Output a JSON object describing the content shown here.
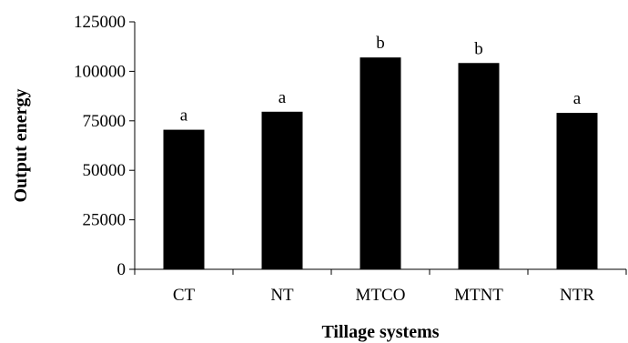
{
  "chart_data": {
    "type": "bar",
    "title": "",
    "xlabel": "Tillage systems",
    "ylabel": "Output energy",
    "categories": [
      "CT",
      "NT",
      "MTCO",
      "MTNT",
      "NTR"
    ],
    "values": [
      70500,
      79600,
      107000,
      104200,
      79000
    ],
    "significance_labels": [
      "a",
      "a",
      "b",
      "b",
      "a"
    ],
    "ylim": [
      0,
      125000
    ],
    "yticks": [
      0,
      25000,
      50000,
      75000,
      100000,
      125000
    ],
    "ytick_labels": [
      "0",
      "25000",
      "50000",
      "75000",
      "100000",
      "125000"
    ],
    "grid": false,
    "legend": "none",
    "colors": {
      "bar": "#000000",
      "axis": "#000000",
      "background": "#ffffff"
    }
  }
}
